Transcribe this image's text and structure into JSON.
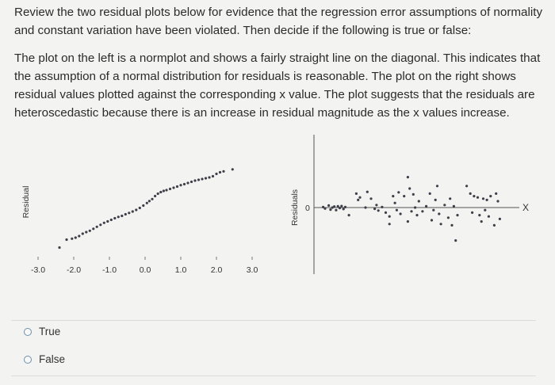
{
  "question": {
    "intro": "Review the two residual plots below for evidence that the regression error assumptions of normality and constant variation have been violated. Then decide if the following is true or false:",
    "statement": "The plot on the left is a normplot and shows a fairly straight line on the diagonal. This indicates that the assumption of a normal distribution for residuals is reasonable. The plot on the right shows residual values plotted against the corresponding x value. The plot suggests that the residuals are heteroscedastic because there is an increase in residual magnitude as the x values increase."
  },
  "chart_data": [
    {
      "type": "scatter",
      "ylabel": "Residual",
      "xticks": [
        "-3.0",
        "-2.0",
        "-1.0",
        "0.0",
        "1.0",
        "2.0",
        "3.0"
      ],
      "xlim": [
        -3.0,
        3.0
      ],
      "ylim": [
        -3.0,
        3.0
      ],
      "points": [
        [
          -2.4,
          -2.3
        ],
        [
          -2.2,
          -1.9
        ],
        [
          -2.05,
          -1.85
        ],
        [
          -1.95,
          -1.8
        ],
        [
          -1.85,
          -1.72
        ],
        [
          -1.75,
          -1.6
        ],
        [
          -1.65,
          -1.52
        ],
        [
          -1.55,
          -1.45
        ],
        [
          -1.45,
          -1.35
        ],
        [
          -1.35,
          -1.25
        ],
        [
          -1.25,
          -1.15
        ],
        [
          -1.15,
          -1.05
        ],
        [
          -1.05,
          -0.98
        ],
        [
          -0.95,
          -0.9
        ],
        [
          -0.85,
          -0.82
        ],
        [
          -0.75,
          -0.75
        ],
        [
          -0.65,
          -0.7
        ],
        [
          -0.55,
          -0.62
        ],
        [
          -0.45,
          -0.55
        ],
        [
          -0.35,
          -0.48
        ],
        [
          -0.25,
          -0.4
        ],
        [
          -0.15,
          -0.3
        ],
        [
          -0.05,
          -0.18
        ],
        [
          0.05,
          -0.05
        ],
        [
          0.12,
          0.05
        ],
        [
          0.2,
          0.15
        ],
        [
          0.28,
          0.3
        ],
        [
          0.36,
          0.42
        ],
        [
          0.44,
          0.5
        ],
        [
          0.52,
          0.56
        ],
        [
          0.6,
          0.6
        ],
        [
          0.7,
          0.66
        ],
        [
          0.8,
          0.72
        ],
        [
          0.9,
          0.78
        ],
        [
          1.0,
          0.85
        ],
        [
          1.1,
          0.9
        ],
        [
          1.2,
          0.96
        ],
        [
          1.3,
          1.02
        ],
        [
          1.4,
          1.08
        ],
        [
          1.5,
          1.12
        ],
        [
          1.6,
          1.16
        ],
        [
          1.7,
          1.2
        ],
        [
          1.8,
          1.24
        ],
        [
          1.9,
          1.3
        ],
        [
          2.0,
          1.42
        ],
        [
          2.1,
          1.5
        ],
        [
          2.2,
          1.55
        ],
        [
          2.45,
          1.65
        ]
      ]
    },
    {
      "type": "scatter",
      "ylabel": "Residuals",
      "y_origin_label": "0",
      "x_axis_label": "X",
      "xlim": [
        0,
        1
      ],
      "ylim": [
        -2,
        2.5
      ],
      "points": [
        [
          0.02,
          0.02
        ],
        [
          0.03,
          -0.04
        ],
        [
          0.05,
          0.08
        ],
        [
          0.06,
          -0.08
        ],
        [
          0.07,
          0.0
        ],
        [
          0.08,
          0.04
        ],
        [
          0.09,
          -0.1
        ],
        [
          0.1,
          0.05
        ],
        [
          0.11,
          -0.02
        ],
        [
          0.12,
          0.06
        ],
        [
          0.13,
          -0.06
        ],
        [
          0.14,
          0.02
        ],
        [
          0.16,
          -0.3
        ],
        [
          0.2,
          0.55
        ],
        [
          0.21,
          0.3
        ],
        [
          0.22,
          0.4
        ],
        [
          0.25,
          0.0
        ],
        [
          0.26,
          0.62
        ],
        [
          0.28,
          0.35
        ],
        [
          0.3,
          -0.05
        ],
        [
          0.31,
          0.1
        ],
        [
          0.32,
          -0.12
        ],
        [
          0.34,
          0.02
        ],
        [
          0.36,
          -0.2
        ],
        [
          0.38,
          -0.35
        ],
        [
          0.38,
          -0.65
        ],
        [
          0.4,
          0.45
        ],
        [
          0.41,
          0.18
        ],
        [
          0.42,
          -0.1
        ],
        [
          0.43,
          0.6
        ],
        [
          0.44,
          -0.25
        ],
        [
          0.46,
          0.45
        ],
        [
          0.48,
          1.2
        ],
        [
          0.48,
          -0.55
        ],
        [
          0.49,
          0.75
        ],
        [
          0.5,
          -0.15
        ],
        [
          0.51,
          0.52
        ],
        [
          0.52,
          0.0
        ],
        [
          0.53,
          -0.3
        ],
        [
          0.54,
          0.25
        ],
        [
          0.56,
          -0.15
        ],
        [
          0.58,
          0.05
        ],
        [
          0.6,
          0.55
        ],
        [
          0.61,
          -0.5
        ],
        [
          0.62,
          -0.1
        ],
        [
          0.63,
          0.3
        ],
        [
          0.64,
          0.85
        ],
        [
          0.65,
          -0.25
        ],
        [
          0.66,
          -0.65
        ],
        [
          0.68,
          0.1
        ],
        [
          0.7,
          -0.4
        ],
        [
          0.71,
          0.35
        ],
        [
          0.72,
          -0.7
        ],
        [
          0.73,
          0.05
        ],
        [
          0.74,
          -1.3
        ],
        [
          0.75,
          -0.3
        ],
        [
          0.8,
          0.85
        ],
        [
          0.82,
          0.55
        ],
        [
          0.83,
          -0.2
        ],
        [
          0.84,
          0.45
        ],
        [
          0.86,
          0.4
        ],
        [
          0.87,
          -0.3
        ],
        [
          0.88,
          -0.55
        ],
        [
          0.89,
          0.35
        ],
        [
          0.9,
          -0.1
        ],
        [
          0.91,
          0.3
        ],
        [
          0.92,
          -0.35
        ],
        [
          0.93,
          0.45
        ],
        [
          0.95,
          -0.7
        ],
        [
          0.96,
          0.55
        ],
        [
          0.97,
          0.25
        ],
        [
          0.98,
          -0.45
        ]
      ]
    }
  ],
  "options": [
    {
      "label": "True",
      "selected": false
    },
    {
      "label": "False",
      "selected": false
    }
  ]
}
